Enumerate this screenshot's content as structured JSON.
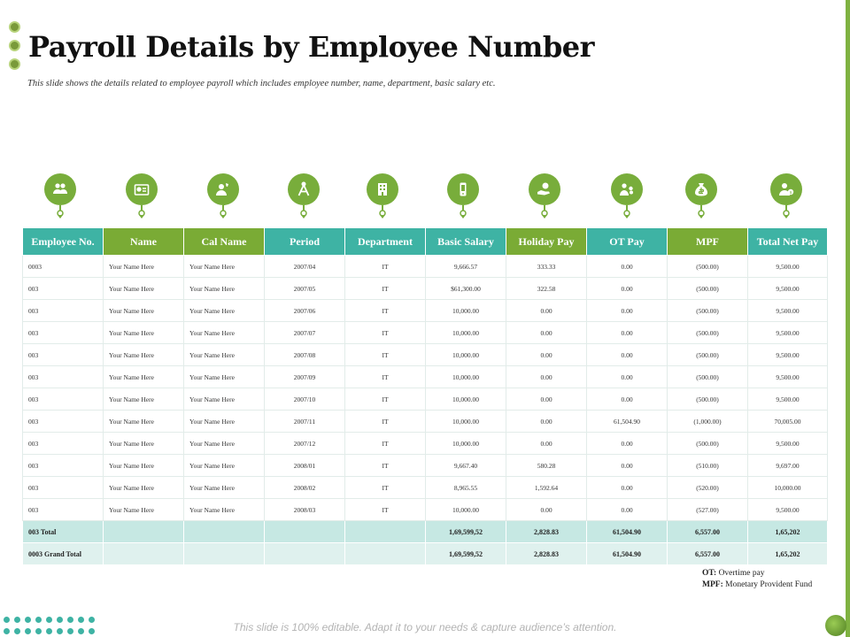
{
  "page": {
    "title": "Payroll Details by Employee Number",
    "subtitle": "This slide shows the details related  to employee payroll which includes  employee number, name, department,  basic salary etc.",
    "footer": "This slide is 100% editable. Adapt it to your needs & capture audience’s attention."
  },
  "colors": {
    "teal": "#3eb3a4",
    "green": "#7aab35",
    "accent_bar": "#7fb241"
  },
  "icons": [
    "people-icon",
    "id-card-icon",
    "phone-user-icon",
    "compass-icon",
    "building-icon",
    "phone-device-icon",
    "coin-hand-icon",
    "worker-coins-icon",
    "money-bag-icon",
    "user-dollar-icon"
  ],
  "table": {
    "headers": [
      "Employee No.",
      "Name",
      "Cal Name",
      "Period",
      "Department",
      "Basic Salary",
      "Holiday Pay",
      "OT Pay",
      "MPF",
      "Total Net Pay"
    ],
    "rows": [
      [
        "0003",
        "Your Name Here",
        "Your Name Here",
        "2007/04",
        "IT",
        "9,666.57",
        "333.33",
        "0.00",
        "(500.00)",
        "9,500.00"
      ],
      [
        "003",
        "Your Name Here",
        "Your Name Here",
        "2007/05",
        "IT",
        "$61,300.00",
        "322.58",
        "0.00",
        "(500.00)",
        "9,500.00"
      ],
      [
        "003",
        "Your Name Here",
        "Your Name Here",
        "2007/06",
        "IT",
        "10,000.00",
        "0.00",
        "0.00",
        "(500.00)",
        "9,500.00"
      ],
      [
        "003",
        "Your Name Here",
        "Your Name Here",
        "2007/07",
        "IT",
        "10,000.00",
        "0.00",
        "0.00",
        "(500.00)",
        "9,500.00"
      ],
      [
        "003",
        "Your Name Here",
        "Your Name Here",
        "2007/08",
        "IT",
        "10,000.00",
        "0.00",
        "0.00",
        "(500.00)",
        "9,500.00"
      ],
      [
        "003",
        "Your Name Here",
        "Your Name Here",
        "2007/09",
        "IT",
        "10,000.00",
        "0.00",
        "0.00",
        "(500.00)",
        "9,500.00"
      ],
      [
        "003",
        "Your Name Here",
        "Your Name Here",
        "2007/10",
        "IT",
        "10,000.00",
        "0.00",
        "0.00",
        "(500.00)",
        "9,500.00"
      ],
      [
        "003",
        "Your Name Here",
        "Your Name Here",
        "2007/11",
        "IT",
        "10,000.00",
        "0.00",
        "61,504.90",
        "(1,000.00)",
        "70,005.00"
      ],
      [
        "003",
        "Your Name Here",
        "Your Name Here",
        "2007/12",
        "IT",
        "10,000.00",
        "0.00",
        "0.00",
        "(500.00)",
        "9,500.00"
      ],
      [
        "003",
        "Your Name Here",
        "Your Name Here",
        "2008/01",
        "IT",
        "9,667.40",
        "580.28",
        "0.00",
        "(510.00)",
        "9,697.00"
      ],
      [
        "003",
        "Your Name Here",
        "Your Name Here",
        "2008/02",
        "IT",
        "8,965.55",
        "1,592.64",
        "0.00",
        "(520.00)",
        "10,000.00"
      ],
      [
        "003",
        "Your Name Here",
        "Your Name Here",
        "2008/03",
        "IT",
        "10,000.00",
        "0.00",
        "0.00",
        "(527.00)",
        "9,500.00"
      ]
    ],
    "totals": [
      [
        "003  Total",
        "",
        "",
        "",
        "",
        "1,69,599,52",
        "2,828.83",
        "61,504.90",
        "6,557.00",
        "1,65,202"
      ],
      [
        "0003  Grand Total",
        "",
        "",
        "",
        "",
        "1,69,599,52",
        "2,828.83",
        "61,504.90",
        "6,557.00",
        "1,65,202"
      ]
    ]
  },
  "legend": {
    "ot_key": "OT:",
    "ot_value": " Overtime pay",
    "mpf_key": "MPF:",
    "mpf_value": " Monetary Provident Fund"
  }
}
